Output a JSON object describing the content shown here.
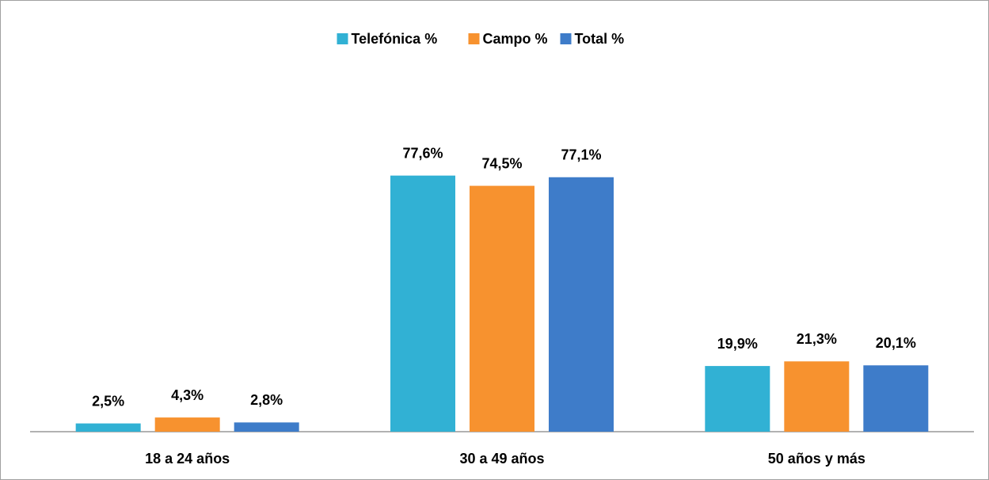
{
  "chart_data": {
    "type": "bar",
    "categories": [
      "18 a 24 años",
      "30 a 49 años",
      "50 años y más"
    ],
    "series": [
      {
        "name": "Telefónica %",
        "color": "#31b1d4",
        "values": [
          2.5,
          77.6,
          19.9
        ],
        "value_labels": [
          "2,5%",
          "77,6%",
          "19,9%"
        ]
      },
      {
        "name": "Campo %",
        "color": "#f7922f",
        "values": [
          4.3,
          74.5,
          21.3
        ],
        "value_labels": [
          "4,3%",
          "74,5%",
          "21,3%"
        ]
      },
      {
        "name": "Total %",
        "color": "#3e7cc9",
        "values": [
          2.8,
          77.1,
          20.1
        ],
        "value_labels": [
          "2,8%",
          "77,1%",
          "20,1%"
        ]
      }
    ],
    "ylim": [
      0,
      90
    ],
    "legend": "top"
  }
}
